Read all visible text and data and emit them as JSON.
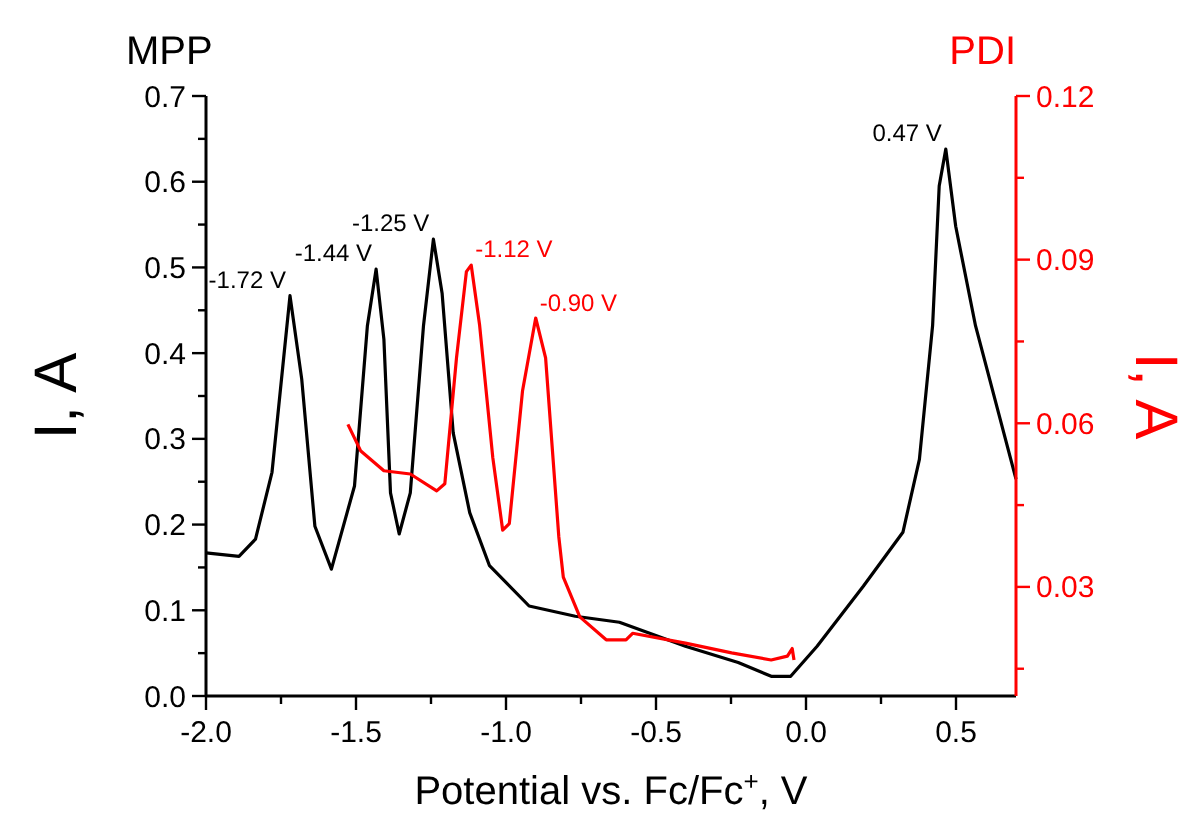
{
  "chart_data": {
    "type": "line",
    "xlabel": "Potential vs. Fc/Fc$^{+}$, V",
    "ylabel": "I,  A",
    "y2label": "I,  A",
    "xlim": [
      -2.0,
      0.7
    ],
    "xticks": [
      {
        "value": -2.0,
        "label": "-2.0"
      },
      {
        "value": -1.75,
        "label": null
      },
      {
        "value": -1.5,
        "label": "-1.5"
      },
      {
        "value": -1.25,
        "label": null
      },
      {
        "value": -1.0,
        "label": "-1.0"
      },
      {
        "value": -0.75,
        "label": null
      },
      {
        "value": -0.5,
        "label": "-0.5"
      },
      {
        "value": -0.25,
        "label": null
      },
      {
        "value": 0.0,
        "label": "0.0"
      },
      {
        "value": 0.25,
        "label": null
      },
      {
        "value": 0.5,
        "label": "0.5"
      }
    ],
    "ylim": [
      0,
      0.7
    ],
    "yticks": [
      {
        "value": 0,
        "label": "0.0"
      },
      {
        "value": 0.05,
        "label": null
      },
      0.1,
      {
        "value": 0.15,
        "label": null
      },
      0.2,
      {
        "value": 0.25,
        "label": null
      },
      0.3,
      {
        "value": 0.35,
        "label": null
      },
      0.4,
      {
        "value": 0.45,
        "label": null
      },
      0.5,
      {
        "value": 0.55,
        "label": null
      },
      0.6,
      {
        "value": 0.65,
        "label": null
      },
      0.7
    ],
    "y2lim": [
      0.01,
      0.12
    ],
    "y2ticks": [
      {
        "value": 0.015,
        "label": null
      },
      0.03,
      {
        "value": 0.045,
        "label": null
      },
      0.06,
      {
        "value": 0.075,
        "label": null
      },
      0.09,
      {
        "value": 0.105,
        "label": null
      },
      0.12
    ],
    "series": [
      {
        "name": "MPP",
        "color": "#000000",
        "axis": "y",
        "x": [
          -2.0,
          -1.89,
          -1.835,
          -1.78,
          -1.72,
          -1.681,
          -1.637,
          -1.582,
          -1.505,
          -1.462,
          -1.433,
          -1.407,
          -1.385,
          -1.356,
          -1.319,
          -1.275,
          -1.242,
          -1.213,
          -1.176,
          -1.121,
          -1.055,
          -0.923,
          -0.769,
          -0.622,
          -0.402,
          -0.226,
          -0.116,
          -0.051,
          0.037,
          0.191,
          0.323,
          0.378,
          0.422,
          0.444,
          0.466,
          0.499,
          0.565,
          0.7
        ],
        "values": [
          0.167,
          0.163,
          0.183,
          0.261,
          0.467,
          0.37,
          0.198,
          0.148,
          0.245,
          0.432,
          0.498,
          0.416,
          0.237,
          0.189,
          0.237,
          0.432,
          0.533,
          0.47,
          0.307,
          0.214,
          0.152,
          0.105,
          0.093,
          0.086,
          0.058,
          0.039,
          0.023,
          0.023,
          0.058,
          0.128,
          0.191,
          0.276,
          0.432,
          0.595,
          0.638,
          0.548,
          0.432,
          0.253
        ],
        "line_style": "solid"
      },
      {
        "name": "PDI",
        "color": "#ff0000",
        "axis": "y2",
        "x": [
          -1.527,
          -1.484,
          -1.407,
          -1.319,
          -1.231,
          -1.204,
          -1.165,
          -1.132,
          -1.116,
          -1.088,
          -1.044,
          -1.011,
          -0.989,
          -0.945,
          -0.901,
          -0.868,
          -0.824,
          -0.809,
          -0.754,
          -0.666,
          -0.6,
          -0.578,
          -0.402,
          -0.248,
          -0.116,
          -0.062,
          -0.046,
          -0.04
        ],
        "values": [
          0.0598,
          0.0549,
          0.0513,
          0.0507,
          0.0476,
          0.0489,
          0.072,
          0.0878,
          0.089,
          0.078,
          0.0537,
          0.0404,
          0.0416,
          0.0659,
          0.0793,
          0.072,
          0.0392,
          0.0318,
          0.0245,
          0.0203,
          0.0203,
          0.0215,
          0.0197,
          0.0179,
          0.0166,
          0.0173,
          0.0187,
          0.0166
        ],
        "line_style": "solid"
      }
    ],
    "annotations": [
      {
        "text": "-1.72 V",
        "x": -1.72,
        "y": 0.467
      },
      {
        "text": "-1.44 V",
        "x": -1.433,
        "y": 0.498
      },
      {
        "text": "-1.25 V",
        "x": -1.242,
        "y": 0.533
      },
      {
        "text": "-1.12 V",
        "x": -1.116,
        "y": 0.503
      },
      {
        "text": "-0.90 V",
        "x": -0.901,
        "y": 0.44
      },
      {
        "text": "0.47 V",
        "x": 0.466,
        "y": 0.638
      }
    ]
  }
}
